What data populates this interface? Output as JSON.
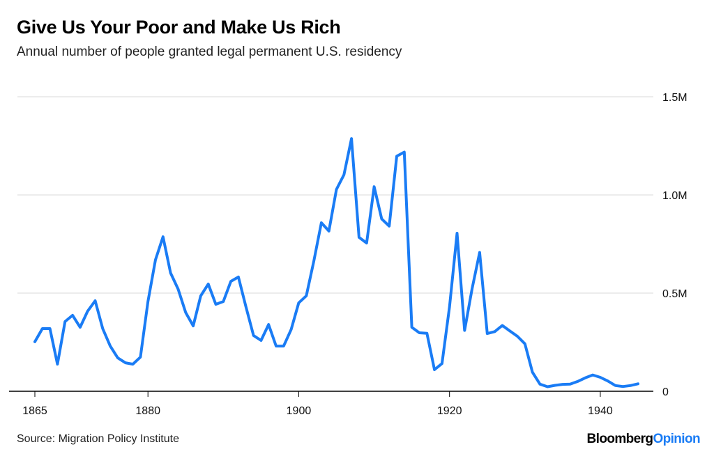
{
  "chart_data": {
    "type": "line",
    "title": "Give Us Your Poor and Make Us Rich",
    "subtitle": "Annual number of people granted legal permanent U.S. residency",
    "source": "Source: Migration Policy Institute",
    "logo": {
      "brand": "Bloomberg",
      "suffix": "Opinion"
    },
    "xlabel": "",
    "ylabel": "",
    "xlim": [
      1865,
      1945
    ],
    "ylim": [
      0,
      1500000
    ],
    "x_ticks": [
      {
        "value": 1865,
        "label": "1865"
      },
      {
        "value": 1880,
        "label": "1880"
      },
      {
        "value": 1900,
        "label": "1900"
      },
      {
        "value": 1920,
        "label": "1920"
      },
      {
        "value": 1940,
        "label": "1940"
      }
    ],
    "y_ticks": [
      {
        "value": 0,
        "label": "0"
      },
      {
        "value": 500000,
        "label": "0.5M"
      },
      {
        "value": 1000000,
        "label": "1.0M"
      },
      {
        "value": 1500000,
        "label": "1.5M"
      }
    ],
    "grid": "horizontal",
    "y_axis_side": "right",
    "colors": {
      "line": "#1a7cf5",
      "grid": "#e6e6e6",
      "axis": "#000000",
      "logo_accent": "#1a7cf5"
    },
    "series": [
      {
        "x": [
          1865,
          1866,
          1867,
          1868,
          1869,
          1870,
          1871,
          1872,
          1873,
          1874,
          1875,
          1876,
          1877,
          1878,
          1879,
          1880,
          1881,
          1882,
          1883,
          1884,
          1885,
          1886,
          1887,
          1888,
          1889,
          1890,
          1891,
          1892,
          1893,
          1894,
          1895,
          1896,
          1897,
          1898,
          1899,
          1900,
          1901,
          1902,
          1903,
          1904,
          1905,
          1906,
          1907,
          1908,
          1909,
          1910,
          1911,
          1912,
          1913,
          1914,
          1915,
          1916,
          1917,
          1918,
          1919,
          1920,
          1921,
          1922,
          1923,
          1924,
          1925,
          1926,
          1927,
          1928,
          1929,
          1930,
          1931,
          1932,
          1933,
          1934,
          1935,
          1936,
          1937,
          1938,
          1939,
          1940,
          1941,
          1942,
          1943,
          1944,
          1945
        ],
        "values": [
          252000,
          319000,
          319000,
          138000,
          355000,
          387000,
          326000,
          408000,
          461000,
          319000,
          230000,
          170000,
          145000,
          138000,
          174000,
          457000,
          670000,
          787000,
          603000,
          521000,
          401000,
          333000,
          486000,
          546000,
          443000,
          457000,
          560000,
          582000,
          429000,
          284000,
          259000,
          340000,
          230000,
          230000,
          315000,
          450000,
          486000,
          663000,
          858000,
          816000,
          1028000,
          1103000,
          1287000,
          784000,
          755000,
          1042000,
          878000,
          841000,
          1197000,
          1218000,
          326000,
          298000,
          295000,
          110000,
          141000,
          430000,
          805000,
          310000,
          523000,
          707000,
          294000,
          304000,
          335000,
          307000,
          280000,
          242000,
          97000,
          36000,
          23000,
          30000,
          35000,
          36000,
          50000,
          68000,
          83000,
          71000,
          52000,
          29000,
          24000,
          29000,
          38000
        ]
      }
    ]
  }
}
